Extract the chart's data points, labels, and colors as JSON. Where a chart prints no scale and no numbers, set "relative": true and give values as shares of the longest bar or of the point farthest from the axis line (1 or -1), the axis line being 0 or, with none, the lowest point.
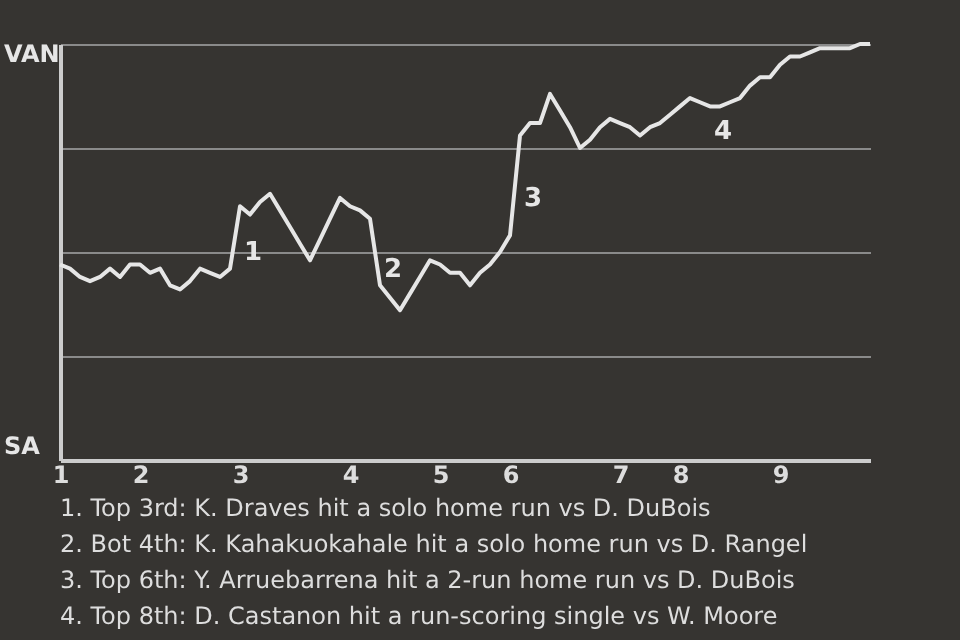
{
  "chart_data": {
    "type": "line",
    "relative": true,
    "categories": [
      "1",
      null,
      null,
      null,
      null,
      null,
      null,
      null,
      "2",
      null,
      null,
      null,
      null,
      null,
      null,
      null,
      null,
      null,
      "3",
      null,
      null,
      null,
      null,
      null,
      null,
      null,
      null,
      null,
      null,
      "4",
      null,
      null,
      null,
      null,
      null,
      null,
      null,
      null,
      "5",
      null,
      null,
      null,
      null,
      null,
      null,
      "6",
      null,
      null,
      null,
      null,
      null,
      null,
      null,
      null,
      null,
      null,
      "7",
      null,
      null,
      null,
      null,
      null,
      "8",
      null,
      null,
      null,
      null,
      null,
      null,
      null,
      null,
      null,
      "9",
      null,
      null,
      null,
      null,
      null,
      null,
      null,
      null,
      null
    ],
    "series": [
      {
        "color": "#e6e6e6",
        "values": [
          0.47,
          0.46,
          0.44,
          0.43,
          0.44,
          0.46,
          0.44,
          0.47,
          0.47,
          0.45,
          0.46,
          0.42,
          0.41,
          0.43,
          0.46,
          0.45,
          0.44,
          0.46,
          0.61,
          0.59,
          0.62,
          0.64,
          0.6,
          0.56,
          0.52,
          0.48,
          0.53,
          0.58,
          0.63,
          0.61,
          0.6,
          0.58,
          0.42,
          0.39,
          0.36,
          0.4,
          0.44,
          0.48,
          0.47,
          0.45,
          0.45,
          0.42,
          0.45,
          0.47,
          0.5,
          0.54,
          0.78,
          0.81,
          0.81,
          0.88,
          0.84,
          0.8,
          0.75,
          0.77,
          0.8,
          0.82,
          0.81,
          0.8,
          0.78,
          0.8,
          0.81,
          0.83,
          0.85,
          0.87,
          0.86,
          0.85,
          0.85,
          0.86,
          0.87,
          0.9,
          0.92,
          0.92,
          0.95,
          0.97,
          0.97,
          0.98,
          0.99,
          0.99,
          0.99,
          0.99,
          1,
          1
        ]
      }
    ],
    "grid": "y",
    "annotations": [
      "1",
      "2",
      "3",
      "4",
      "VAN",
      "SA",
      "1. Top 3rd: K. Draves hit a solo home run vs D. DuBois",
      "2. Bot 4th: K. Kahakuokahale hit a solo home run vs D. Rangel",
      "3. Top 6th: Y. Arruebarrena hit a 2-run home run vs D. DuBois",
      "4. Top 8th: D. Castanon hit a run-scoring single vs W. Moore"
    ]
  }
}
